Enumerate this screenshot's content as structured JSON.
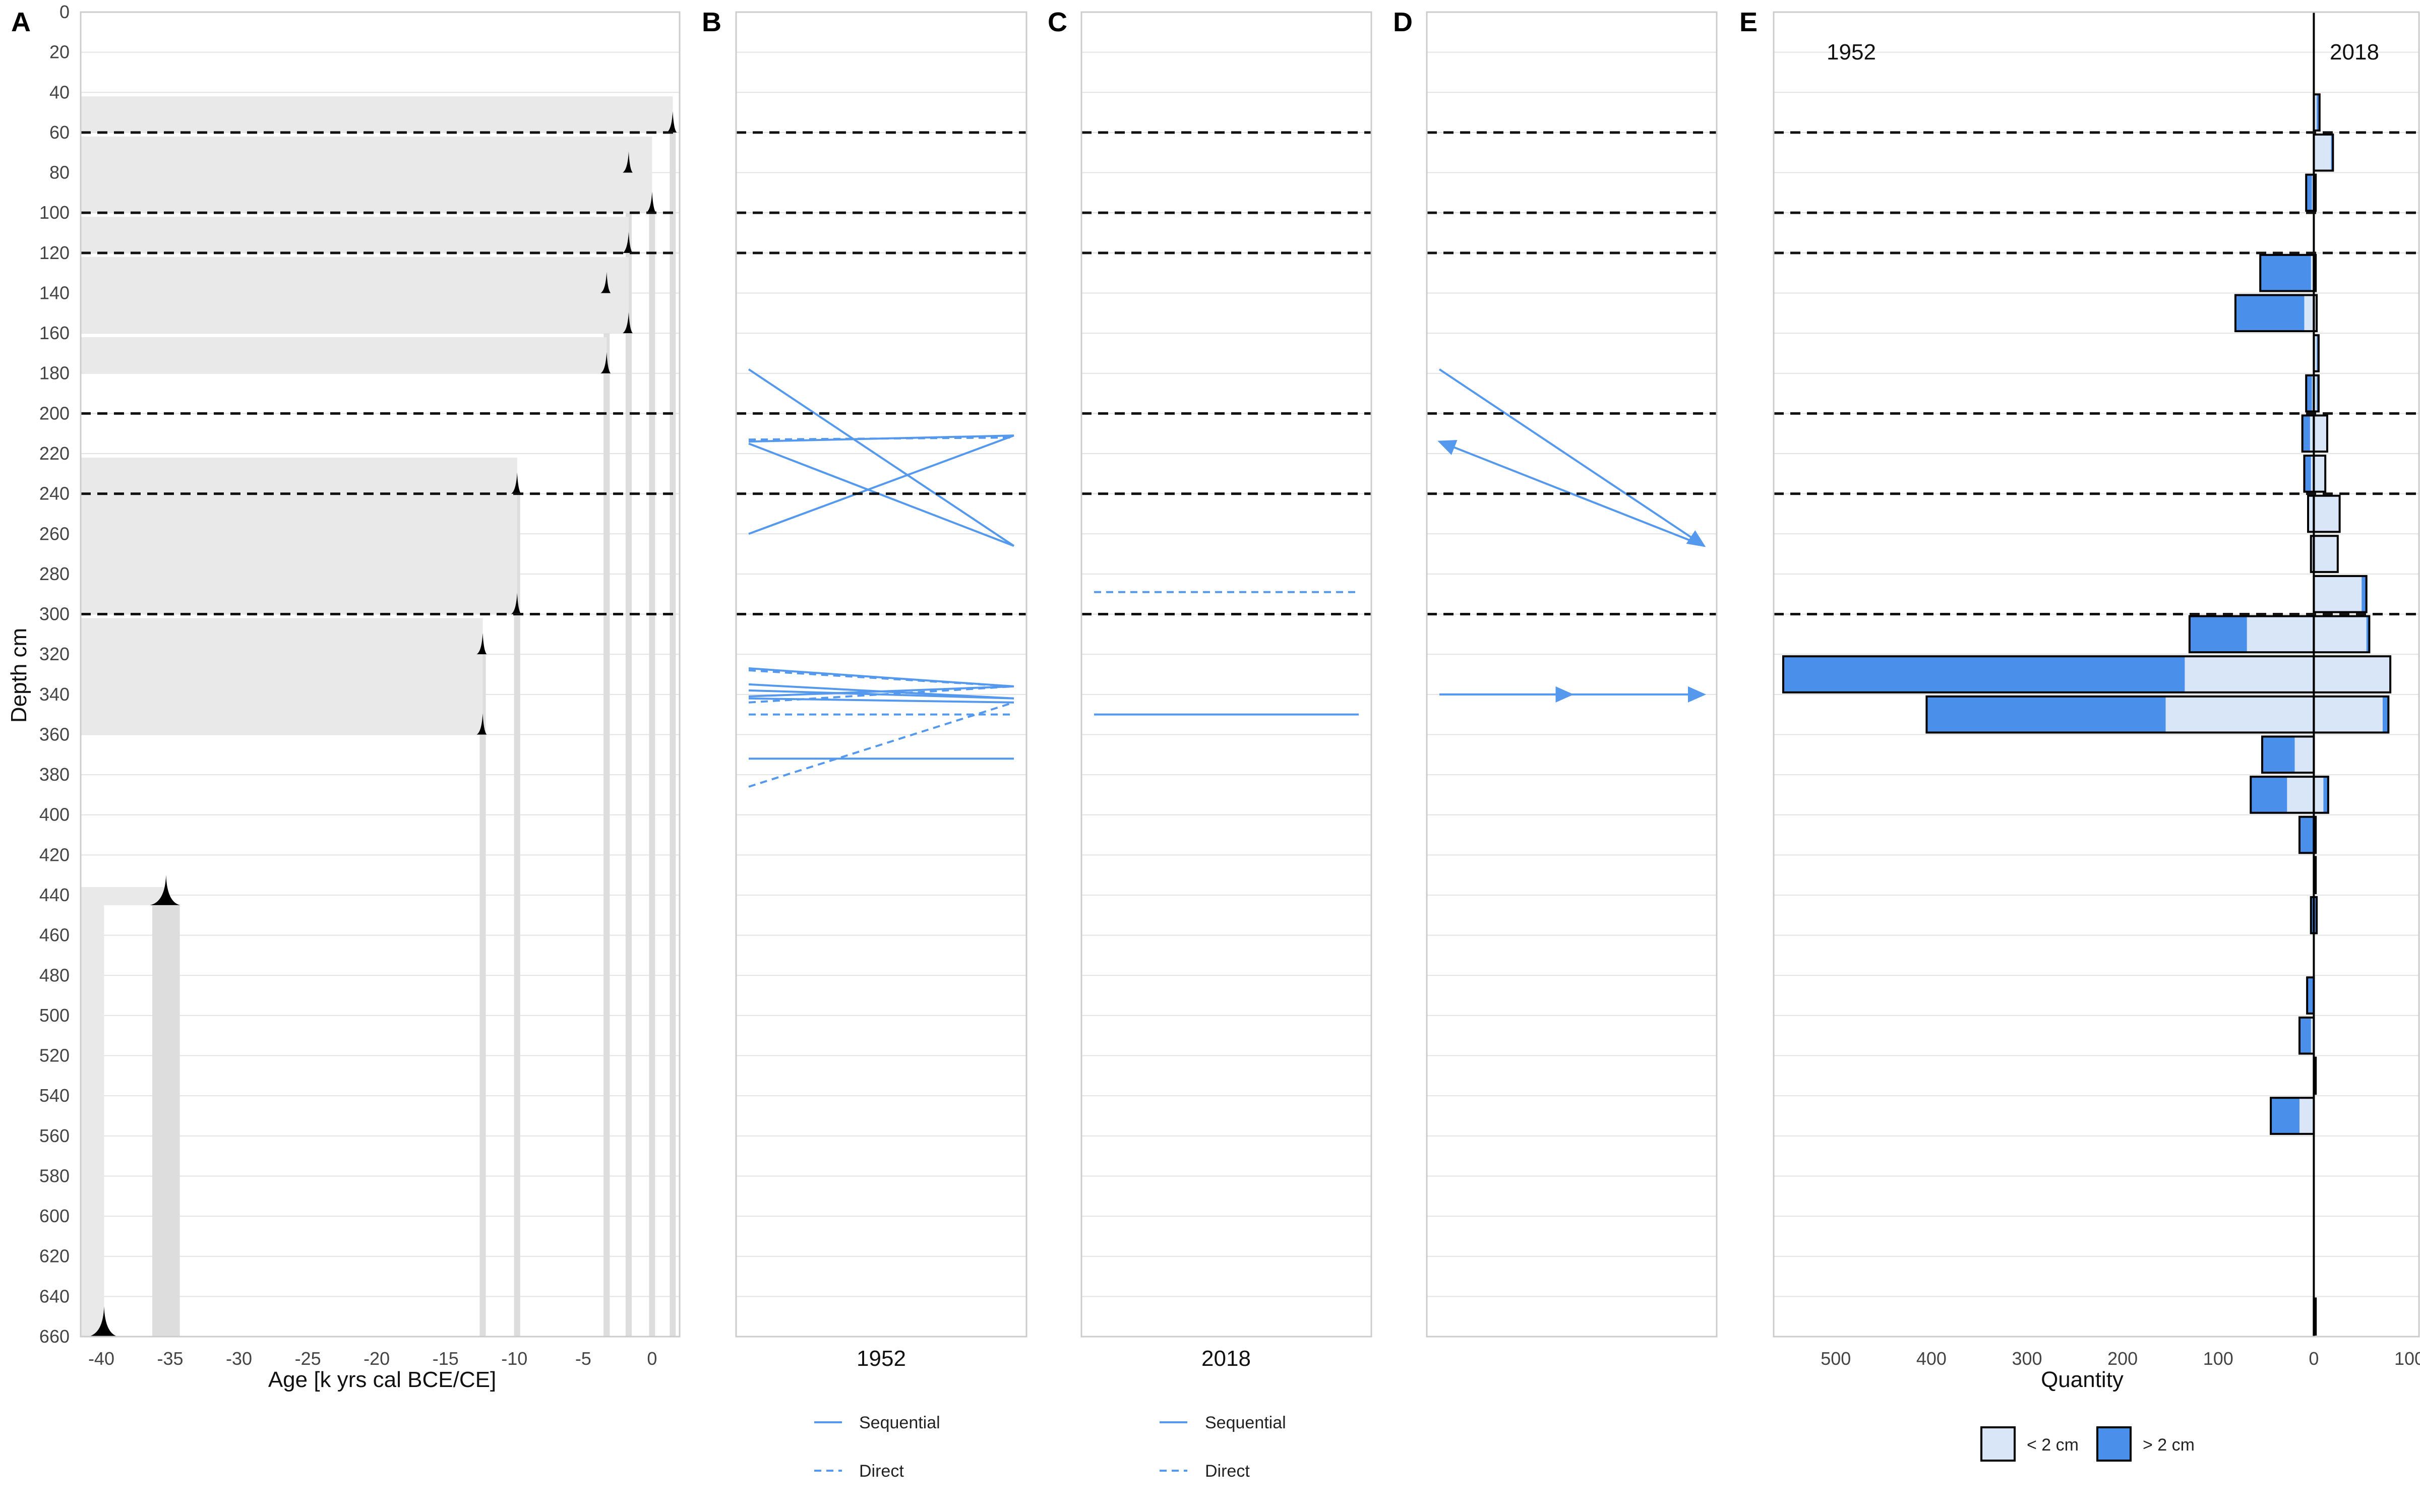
{
  "chart_data": {
    "type": "multi-panel",
    "y_axis": {
      "label": "Depth cm",
      "range": [
        0,
        660
      ],
      "ticks": [
        "0",
        "20",
        "40",
        "60",
        "80",
        "100",
        "120",
        "140",
        "160",
        "180",
        "200",
        "220",
        "240",
        "260",
        "280",
        "300",
        "320",
        "340",
        "360",
        "380",
        "400",
        "420",
        "440",
        "460",
        "480",
        "500",
        "520",
        "540",
        "560",
        "580",
        "600",
        "620",
        "640",
        "660"
      ],
      "reversed": true
    },
    "boundaries_depth": [
      60,
      100,
      120,
      200,
      240,
      300
    ],
    "colors": {
      "accent": "#5599EE",
      "accent_light": "#D9E6F7",
      "accent_dark": "#4A8FEA",
      "band": "#E9E9E9",
      "dashed": "#111111"
    },
    "panels": {
      "A": {
        "letter": "A",
        "xlabel": "Age [k yrs cal BCE/CE]",
        "xlim": [
          -41.5,
          2
        ],
        "xticks": [
          "-40",
          "-35",
          "-30",
          "-25",
          "-20",
          "-15",
          "-10",
          "-5",
          "0"
        ],
        "dates": [
          {
            "age": 1.5,
            "top_depth": 42,
            "depth": 60
          },
          {
            "age": -1.7,
            "top_depth": 62,
            "depth": 80
          },
          {
            "age": 0.0,
            "top_depth": 62,
            "depth": 100
          },
          {
            "age": -1.7,
            "top_depth": 102,
            "depth": 120
          },
          {
            "age": -3.3,
            "top_depth": 122,
            "depth": 140
          },
          {
            "age": -1.7,
            "top_depth": 122,
            "depth": 160
          },
          {
            "age": -3.3,
            "top_depth": 162,
            "depth": 180
          },
          {
            "age": -9.8,
            "top_depth": 222,
            "depth": 240
          },
          {
            "age": -9.8,
            "top_depth": 222,
            "depth": 300
          },
          {
            "age": -12.3,
            "top_depth": 302,
            "depth": 320
          },
          {
            "age": -12.3,
            "top_depth": 302,
            "depth": 360
          },
          {
            "age": -35.3,
            "top_depth": 436,
            "depth": 445
          },
          {
            "age": -39.8,
            "top_depth": 436,
            "depth": 660
          }
        ]
      },
      "B": {
        "letter": "B",
        "xlabel": "1952",
        "legend": [
          "Sequential",
          "Direct"
        ],
        "segments": [
          {
            "from": 178,
            "to": 266,
            "style": "Sequential"
          },
          {
            "from": 214,
            "to": 211,
            "style": "Sequential"
          },
          {
            "from": 213,
            "to": 212,
            "style": "Direct"
          },
          {
            "from": 215,
            "to": 266,
            "style": "Sequential"
          },
          {
            "from": 260,
            "to": 211,
            "style": "Sequential"
          },
          {
            "from": 327,
            "to": 336,
            "style": "Sequential"
          },
          {
            "from": 328,
            "to": 336,
            "style": "Direct"
          },
          {
            "from": 335,
            "to": 342,
            "style": "Sequential"
          },
          {
            "from": 338,
            "to": 342,
            "style": "Sequential"
          },
          {
            "from": 341,
            "to": 336,
            "style": "Sequential"
          },
          {
            "from": 342,
            "to": 344,
            "style": "Sequential"
          },
          {
            "from": 344,
            "to": 336,
            "style": "Direct"
          },
          {
            "from": 350,
            "to": 350,
            "style": "Direct"
          },
          {
            "from": 372,
            "to": 372,
            "style": "Sequential"
          },
          {
            "from": 386,
            "to": 344,
            "style": "Direct"
          }
        ]
      },
      "C": {
        "letter": "C",
        "xlabel": "2018",
        "legend": [
          "Sequential",
          "Direct"
        ],
        "segments": [
          {
            "from": 289,
            "to": 289,
            "style": "Direct"
          },
          {
            "from": 350,
            "to": 350,
            "style": "Sequential"
          }
        ]
      },
      "D": {
        "letter": "D",
        "arrows": [
          {
            "from": 178,
            "to": 266
          },
          {
            "from": 266,
            "to": 214
          },
          {
            "from": 340,
            "to": 340
          }
        ]
      },
      "E": {
        "letter": "E",
        "xlabel": "Quantity",
        "xlim": [
          -565,
          110
        ],
        "xticks": [
          "500",
          "400",
          "300",
          "200",
          "100",
          "0",
          "100"
        ],
        "left_label": "1952",
        "right_label": "2018",
        "legend": [
          "< 2 cm",
          "> 2 cm"
        ],
        "bars": [
          {
            "depth": 50,
            "y1952_small": 0,
            "y1952_large": 0,
            "y2018_small": 3,
            "y2018_large": 3
          },
          {
            "depth": 70,
            "y1952_small": 0,
            "y1952_large": 0,
            "y2018_small": 18,
            "y2018_large": 2
          },
          {
            "depth": 90,
            "y1952_small": 2,
            "y1952_large": 6,
            "y2018_small": 2,
            "y2018_large": 0
          },
          {
            "depth": 130,
            "y1952_small": 3,
            "y1952_large": 53,
            "y2018_small": 2,
            "y2018_large": 0
          },
          {
            "depth": 150,
            "y1952_small": 10,
            "y1952_large": 72,
            "y2018_small": 3,
            "y2018_large": 0
          },
          {
            "depth": 170,
            "y1952_small": 0,
            "y1952_large": 0,
            "y2018_small": 3,
            "y2018_large": 2
          },
          {
            "depth": 190,
            "y1952_small": 2,
            "y1952_large": 6,
            "y2018_small": 3,
            "y2018_large": 2
          },
          {
            "depth": 210,
            "y1952_small": 4,
            "y1952_large": 8,
            "y2018_small": 14,
            "y2018_large": 0
          },
          {
            "depth": 230,
            "y1952_small": 3,
            "y1952_large": 7,
            "y2018_small": 12,
            "y2018_large": 0
          },
          {
            "depth": 250,
            "y1952_small": 6,
            "y1952_large": 0,
            "y2018_small": 27,
            "y2018_large": 0
          },
          {
            "depth": 270,
            "y1952_small": 3,
            "y1952_large": 0,
            "y2018_small": 25,
            "y2018_large": 0
          },
          {
            "depth": 290,
            "y1952_small": 0,
            "y1952_large": 0,
            "y2018_small": 50,
            "y2018_large": 5
          },
          {
            "depth": 310,
            "y1952_small": 70,
            "y1952_large": 60,
            "y2018_small": 55,
            "y2018_large": 3
          },
          {
            "depth": 330,
            "y1952_small": 135,
            "y1952_large": 420,
            "y2018_small": 80,
            "y2018_large": 0
          },
          {
            "depth": 350,
            "y1952_small": 155,
            "y1952_large": 250,
            "y2018_small": 72,
            "y2018_large": 6
          },
          {
            "depth": 370,
            "y1952_small": 20,
            "y1952_large": 34,
            "y2018_small": 0,
            "y2018_large": 0
          },
          {
            "depth": 390,
            "y1952_small": 28,
            "y1952_large": 38,
            "y2018_small": 10,
            "y2018_large": 5
          },
          {
            "depth": 410,
            "y1952_small": 0,
            "y1952_large": 15,
            "y2018_small": 0,
            "y2018_large": 2
          },
          {
            "depth": 430,
            "y1952_small": 0,
            "y1952_large": 0,
            "y2018_small": 0,
            "y2018_large": 2
          },
          {
            "depth": 450,
            "y1952_small": 0,
            "y1952_large": 3,
            "y2018_small": 0,
            "y2018_large": 3
          },
          {
            "depth": 490,
            "y1952_small": 0,
            "y1952_large": 7,
            "y2018_small": 0,
            "y2018_large": 0
          },
          {
            "depth": 510,
            "y1952_small": 3,
            "y1952_large": 12,
            "y2018_small": 0,
            "y2018_large": 0
          },
          {
            "depth": 530,
            "y1952_small": 0,
            "y1952_large": 0,
            "y2018_small": 0,
            "y2018_large": 2
          },
          {
            "depth": 550,
            "y1952_small": 15,
            "y1952_large": 30,
            "y2018_small": 0,
            "y2018_large": 0
          },
          {
            "depth": 650,
            "y1952_small": 0,
            "y1952_large": 0,
            "y2018_small": 0,
            "y2018_large": 2
          }
        ]
      }
    }
  }
}
